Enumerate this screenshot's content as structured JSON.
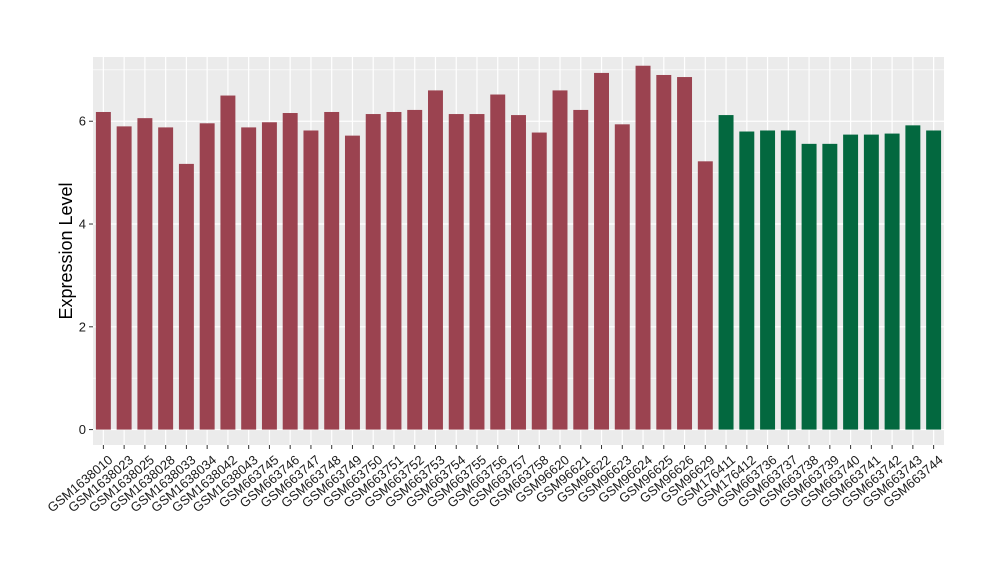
{
  "chart_data": {
    "type": "bar",
    "title": "",
    "xlabel": "",
    "ylabel": "Expression Level",
    "ylim": [
      -0.3,
      7.25
    ],
    "yticks": [
      0,
      2,
      4,
      6
    ],
    "grid": true,
    "legend": "none",
    "colors": {
      "group1": "#9b4350",
      "group2": "#03683f",
      "panel": "#ebebeb",
      "gridline": "#ffffff"
    },
    "categories": [
      "GSM1638010",
      "GSM1638023",
      "GSM1638025",
      "GSM1638028",
      "GSM1638033",
      "GSM1638034",
      "GSM1638042",
      "GSM1638043",
      "GSM663745",
      "GSM663746",
      "GSM663747",
      "GSM663748",
      "GSM663749",
      "GSM663750",
      "GSM663751",
      "GSM663752",
      "GSM663753",
      "GSM663754",
      "GSM663755",
      "GSM663756",
      "GSM663757",
      "GSM663758",
      "GSM96620",
      "GSM96621",
      "GSM96622",
      "GSM96623",
      "GSM96624",
      "GSM96625",
      "GSM96626",
      "GSM96629",
      "GSM176411",
      "GSM176412",
      "GSM663736",
      "GSM663737",
      "GSM663738",
      "GSM663739",
      "GSM663740",
      "GSM663741",
      "GSM663742",
      "GSM663743",
      "GSM663744"
    ],
    "values": [
      6.18,
      5.9,
      6.06,
      5.88,
      5.17,
      5.96,
      6.5,
      5.88,
      5.98,
      6.16,
      5.82,
      6.18,
      5.72,
      6.14,
      6.18,
      6.22,
      6.6,
      6.14,
      6.14,
      6.52,
      6.12,
      5.78,
      6.6,
      6.22,
      6.94,
      5.94,
      7.08,
      6.9,
      6.86,
      5.22,
      6.12,
      5.8,
      5.82,
      5.82,
      5.56,
      5.56,
      5.74,
      5.74,
      5.76,
      5.92,
      5.82
    ],
    "groups": [
      1,
      1,
      1,
      1,
      1,
      1,
      1,
      1,
      1,
      1,
      1,
      1,
      1,
      1,
      1,
      1,
      1,
      1,
      1,
      1,
      1,
      1,
      1,
      1,
      1,
      1,
      1,
      1,
      1,
      1,
      2,
      2,
      2,
      2,
      2,
      2,
      2,
      2,
      2,
      2,
      2
    ]
  }
}
